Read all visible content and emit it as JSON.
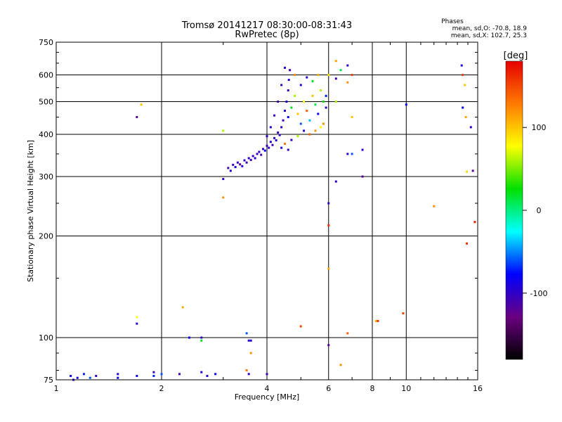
{
  "chart_data": {
    "type": "scatter",
    "title": "Tromsø 20141217 08:30:00-08:31:43",
    "subtitle": "RwPretec (8p)",
    "xlabel": "Frequency [MHz]",
    "ylabel": "Stationary phase Virtual Height [km]",
    "x_scale": "log",
    "y_scale": "log",
    "xlim": [
      1,
      16
    ],
    "ylim": [
      75,
      750
    ],
    "x_ticks": [
      {
        "value": 1,
        "label": "1"
      },
      {
        "value": 2,
        "label": "2"
      },
      {
        "value": 4,
        "label": "4"
      },
      {
        "value": 6,
        "label": "6"
      },
      {
        "value": 8,
        "label": "8"
      },
      {
        "value": 10,
        "label": "10"
      },
      {
        "value": 16,
        "label": "16"
      }
    ],
    "y_ticks": [
      {
        "value": 75,
        "label": "75"
      },
      {
        "value": 100,
        "label": "100"
      },
      {
        "value": 200,
        "label": "200"
      },
      {
        "value": 300,
        "label": "300"
      },
      {
        "value": 400,
        "label": "400"
      },
      {
        "value": 500,
        "label": "500"
      },
      {
        "value": 600,
        "label": "600"
      },
      {
        "value": 750,
        "label": "750"
      }
    ],
    "grid": true,
    "info": {
      "heading": "Phases",
      "line1": "mean, sd,O: -70.8, 18.9",
      "line2": "mean, sd,X: 102.7, 25.3"
    },
    "colorbar": {
      "label": "[deg]",
      "range": [
        -180,
        180
      ],
      "ticks": [
        {
          "value": 100,
          "label": "100"
        },
        {
          "value": 0,
          "label": "0"
        },
        {
          "value": -100,
          "label": "-100"
        }
      ],
      "stops": [
        "#e60000",
        "#ff7a00",
        "#ffff00",
        "#00e000",
        "#00ffff",
        "#0000ff",
        "#6a0080",
        "#000000"
      ]
    },
    "points": [
      [
        3.0,
        295,
        -100
      ],
      [
        3.1,
        318,
        -110
      ],
      [
        3.15,
        312,
        -90
      ],
      [
        3.2,
        325,
        -105
      ],
      [
        3.25,
        320,
        -95
      ],
      [
        3.3,
        330,
        -100
      ],
      [
        3.35,
        326,
        -115
      ],
      [
        3.4,
        322,
        -90
      ],
      [
        3.45,
        335,
        -100
      ],
      [
        3.5,
        330,
        -105
      ],
      [
        3.55,
        340,
        -95
      ],
      [
        3.6,
        336,
        -110
      ],
      [
        3.65,
        345,
        -100
      ],
      [
        3.7,
        340,
        -90
      ],
      [
        3.75,
        350,
        -105
      ],
      [
        3.8,
        355,
        -95
      ],
      [
        3.85,
        348,
        -110
      ],
      [
        3.9,
        362,
        -100
      ],
      [
        3.95,
        358,
        -85
      ],
      [
        4.0,
        370,
        -105
      ],
      [
        4.05,
        365,
        -100
      ],
      [
        4.1,
        380,
        -95
      ],
      [
        4.15,
        372,
        -110
      ],
      [
        4.2,
        390,
        -100
      ],
      [
        4.25,
        384,
        -90
      ],
      [
        4.3,
        405,
        -105
      ],
      [
        4.35,
        398,
        -95
      ],
      [
        4.4,
        420,
        -100
      ],
      [
        4.45,
        440,
        -110
      ],
      [
        4.5,
        470,
        -100
      ],
      [
        4.55,
        500,
        -95
      ],
      [
        4.6,
        540,
        -105
      ],
      [
        4.62,
        580,
        -100
      ],
      [
        4.65,
        620,
        -110
      ],
      [
        4.5,
        630,
        -95
      ],
      [
        4.4,
        560,
        -100
      ],
      [
        4.3,
        500,
        -110
      ],
      [
        4.2,
        455,
        -105
      ],
      [
        4.1,
        420,
        -95
      ],
      [
        4.0,
        395,
        -100
      ],
      [
        4.6,
        450,
        -80
      ],
      [
        4.7,
        480,
        20
      ],
      [
        4.8,
        520,
        60
      ],
      [
        4.9,
        460,
        100
      ],
      [
        5.0,
        430,
        -60
      ],
      [
        5.1,
        500,
        80
      ],
      [
        5.2,
        470,
        140
      ],
      [
        5.3,
        440,
        -40
      ],
      [
        5.4,
        520,
        100
      ],
      [
        5.5,
        490,
        10
      ],
      [
        5.6,
        460,
        -80
      ],
      [
        5.7,
        540,
        60
      ],
      [
        5.8,
        430,
        120
      ],
      [
        5.9,
        480,
        -100
      ],
      [
        5.0,
        560,
        -90
      ],
      [
        5.2,
        590,
        -100
      ],
      [
        5.4,
        575,
        20
      ],
      [
        5.6,
        600,
        110
      ],
      [
        4.8,
        600,
        120
      ],
      [
        5.5,
        410,
        120
      ],
      [
        5.7,
        420,
        80
      ],
      [
        5.3,
        400,
        140
      ],
      [
        5.1,
        410,
        -90
      ],
      [
        4.9,
        395,
        60
      ],
      [
        4.7,
        385,
        -100
      ],
      [
        4.5,
        375,
        130
      ],
      [
        4.4,
        365,
        -90
      ],
      [
        4.6,
        360,
        -100
      ],
      [
        5.8,
        500,
        30
      ],
      [
        5.9,
        520,
        -70
      ],
      [
        6.0,
        250,
        -100
      ],
      [
        6.0,
        215,
        160
      ],
      [
        6.0,
        160,
        110
      ],
      [
        6.0,
        95,
        -120
      ],
      [
        6.0,
        600,
        90
      ],
      [
        6.3,
        660,
        110
      ],
      [
        6.3,
        585,
        -110
      ],
      [
        6.5,
        620,
        10
      ],
      [
        6.8,
        640,
        -100
      ],
      [
        7.0,
        600,
        150
      ],
      [
        6.8,
        570,
        120
      ],
      [
        7.0,
        450,
        100
      ],
      [
        6.8,
        350,
        -100
      ],
      [
        7.0,
        350,
        -60
      ],
      [
        7.5,
        360,
        -100
      ],
      [
        7.5,
        300,
        -120
      ],
      [
        6.3,
        290,
        -100
      ],
      [
        6.3,
        500,
        60
      ],
      [
        1.7,
        450,
        -120
      ],
      [
        1.75,
        490,
        100
      ],
      [
        3.0,
        410,
        60
      ],
      [
        3.0,
        260,
        120
      ],
      [
        1.7,
        115,
        80
      ],
      [
        1.7,
        110,
        -100
      ],
      [
        2.3,
        123,
        110
      ],
      [
        2.4,
        100,
        -80
      ],
      [
        2.6,
        100,
        -100
      ],
      [
        2.6,
        98,
        20
      ],
      [
        3.5,
        103,
        -60
      ],
      [
        3.55,
        98,
        -100
      ],
      [
        3.6,
        98,
        -90
      ],
      [
        3.6,
        90,
        120
      ],
      [
        3.5,
        80,
        130
      ],
      [
        3.55,
        78,
        -100
      ],
      [
        4.0,
        78,
        -110
      ],
      [
        5.0,
        108,
        150
      ],
      [
        6.5,
        83,
        120
      ],
      [
        6.8,
        103,
        140
      ],
      [
        8.2,
        112,
        110
      ],
      [
        8.3,
        112,
        160
      ],
      [
        9.8,
        118,
        150
      ],
      [
        12.0,
        245,
        120
      ],
      [
        10.0,
        490,
        -80
      ],
      [
        14.4,
        640,
        -90
      ],
      [
        14.5,
        600,
        150
      ],
      [
        14.7,
        560,
        100
      ],
      [
        14.8,
        450,
        110
      ],
      [
        15.3,
        420,
        -100
      ],
      [
        15.5,
        312,
        -120
      ],
      [
        15.7,
        220,
        170
      ],
      [
        14.9,
        190,
        160
      ],
      [
        14.9,
        310,
        90
      ],
      [
        14.5,
        480,
        -80
      ],
      [
        1.1,
        77,
        -80
      ],
      [
        1.15,
        76,
        -90
      ],
      [
        1.2,
        78,
        -70
      ],
      [
        1.3,
        77,
        -100
      ],
      [
        1.5,
        78,
        -90
      ],
      [
        1.5,
        76,
        -80
      ],
      [
        1.7,
        77,
        -85
      ],
      [
        1.9,
        79,
        -100
      ],
      [
        1.9,
        77,
        -70
      ],
      [
        2.0,
        78,
        -60
      ],
      [
        2.25,
        78,
        -110
      ],
      [
        2.6,
        79,
        -90
      ],
      [
        2.7,
        77,
        -100
      ],
      [
        2.85,
        78,
        -80
      ],
      [
        1.12,
        75,
        -90
      ],
      [
        1.25,
        76,
        -60
      ]
    ]
  }
}
